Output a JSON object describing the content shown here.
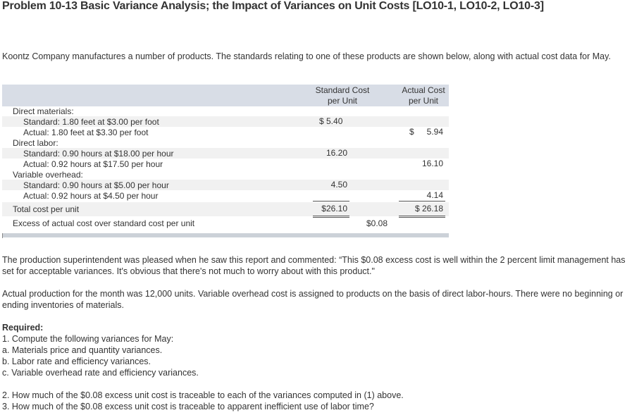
{
  "title": "Problem 10-13 Basic Variance Analysis; the Impact of Variances on Unit Costs [LO10-1, LO10-2, LO10-3]",
  "intro": "Koontz Company manufactures a number of products. The standards relating to one of these products are shown below, along with actual cost data for May.",
  "table": {
    "col_standard": [
      "Standard Cost",
      "per Unit"
    ],
    "col_actual": [
      "Actual Cost",
      "per Unit"
    ],
    "rows": {
      "dm_label": "Direct materials:",
      "dm_std_label": "Standard: 1.80 feet at $3.00 per foot",
      "dm_std_value": "$ 5.40",
      "dm_act_label": "Actual: 1.80 feet at $3.30 per foot",
      "dm_act_dollar": "$",
      "dm_act_value": "5.94",
      "dl_label": "Direct labor:",
      "dl_std_label": "Standard: 0.90 hours at $18.00 per hour",
      "dl_std_value": "16.20",
      "dl_act_label": "Actual: 0.92 hours at $17.50 per hour",
      "dl_act_value": "16.10",
      "voh_label": "Variable overhead:",
      "voh_std_label": "Standard: 0.90 hours at $5.00 per hour",
      "voh_std_value": "4.50",
      "voh_act_label": "Actual: 0.92 hours at $4.50 per hour",
      "voh_act_value": "4.14",
      "total_label": "Total cost per unit",
      "total_std": "$26.10",
      "total_act": "$ 26.18",
      "excess_label": "Excess of actual cost over standard cost per unit",
      "excess_value": "$0.08"
    }
  },
  "comment": "The production superintendent was pleased when he saw this report and commented: “This $0.08 excess cost is well within the 2 percent limit management has set for acceptable variances. It's obvious that there's not much to worry about with this product.\"",
  "production": "Actual production for the month was 12,000 units. Variable overhead cost is assigned to products on the basis of direct labor-hours. There were no beginning or ending inventories of materials.",
  "required": {
    "heading": "Required:",
    "lines": [
      "1. Compute the following variances for May:",
      "a. Materials price and quantity variances.",
      "b. Labor rate and efficiency variances.",
      "c. Variable overhead rate and efficiency variances."
    ],
    "questions": [
      "2. How much of the $0.08 excess unit cost is traceable to each of the variances computed in (1) above.",
      "3. How much of the $0.08 excess unit cost is traceable to apparent inefficient use of labor time?"
    ]
  }
}
